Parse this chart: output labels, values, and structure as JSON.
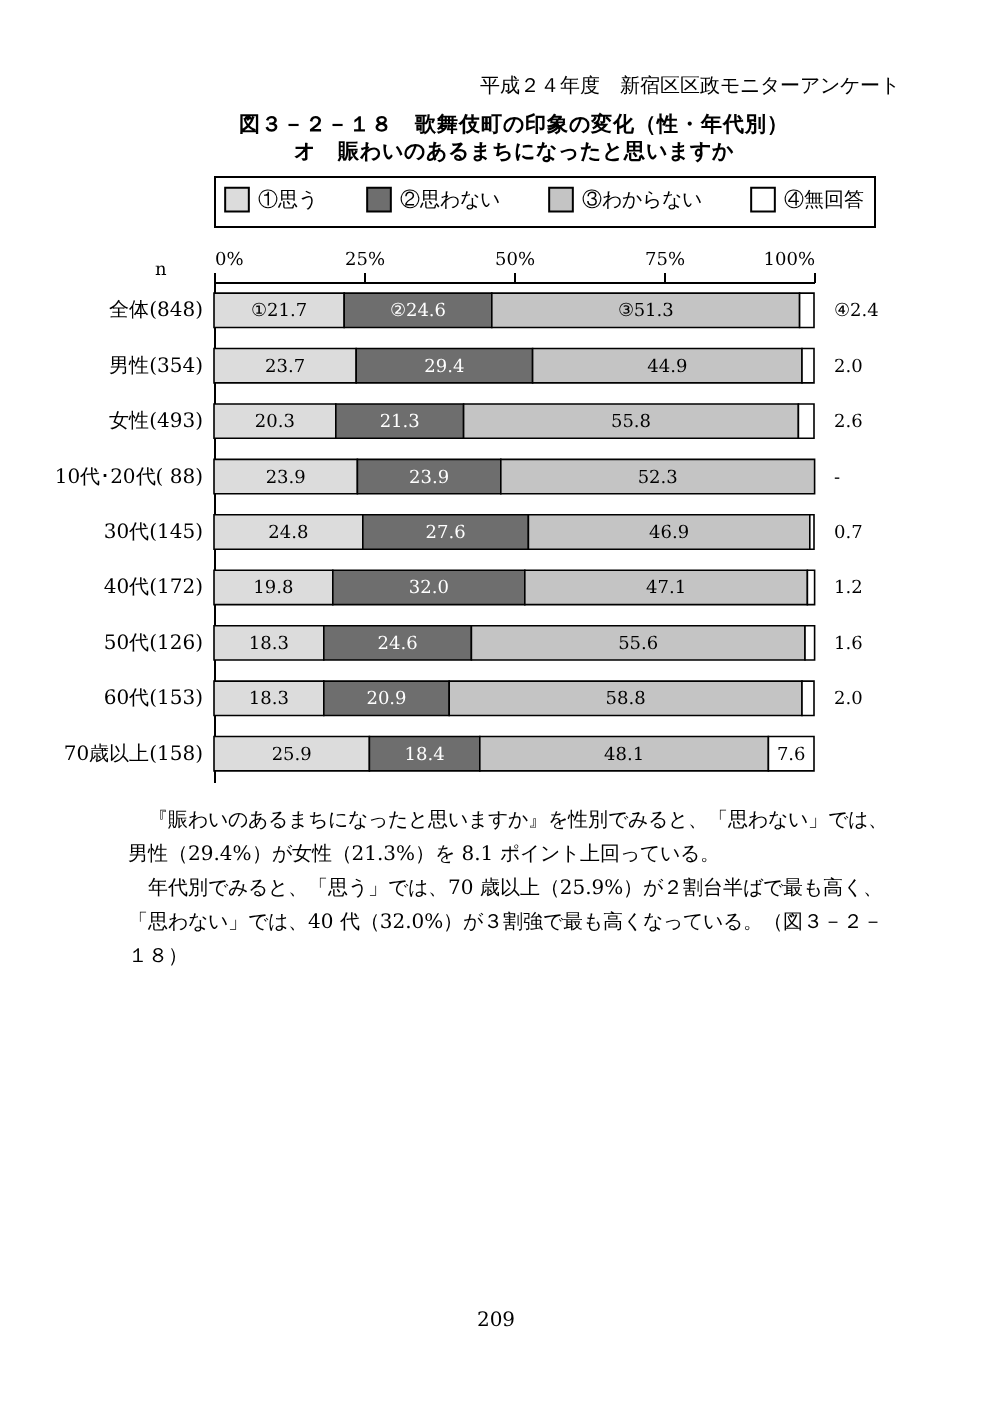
{
  "chart_data": {
    "type": "bar",
    "orientation": "horizontal",
    "stacked": true,
    "title": "図３－２－１８　歌舞伎町の印象の変化（性・年代別）",
    "subtitle": "オ　賑わいのあるまちになったと思いますか",
    "ylabel": "n",
    "categories": [
      "全体(848)",
      "男性(354)",
      "女性(493)",
      "10代･20代( 88)",
      "30代(145)",
      "40代(172)",
      "50代(126)",
      "60代(153)",
      "70歳以上(158)"
    ],
    "series": [
      {
        "name": "①思う",
        "color": "#dcdcdc",
        "values": [
          21.7,
          23.7,
          20.3,
          23.9,
          24.8,
          19.8,
          18.3,
          18.3,
          25.9
        ],
        "value_labels": [
          "①21.7",
          "23.7",
          "20.3",
          "23.9",
          "24.8",
          "19.8",
          "18.3",
          "18.3",
          "25.9"
        ]
      },
      {
        "name": "②思わない",
        "color": "#6e6e6e",
        "values": [
          24.6,
          29.4,
          21.3,
          23.9,
          27.6,
          32.0,
          24.6,
          20.9,
          18.4
        ],
        "value_labels": [
          "②24.6",
          "29.4",
          "21.3",
          "23.9",
          "27.6",
          "32.0",
          "24.6",
          "20.9",
          "18.4"
        ]
      },
      {
        "name": "③わからない",
        "color": "#c4c4c4",
        "values": [
          51.3,
          44.9,
          55.8,
          52.3,
          46.9,
          47.1,
          55.6,
          58.8,
          48.1
        ],
        "value_labels": [
          "③51.3",
          "44.9",
          "55.8",
          "52.3",
          "46.9",
          "47.1",
          "55.6",
          "58.8",
          "48.1"
        ]
      },
      {
        "name": "④無回答",
        "color": "#ffffff",
        "values": [
          2.4,
          2.0,
          2.6,
          0,
          0.7,
          1.2,
          1.6,
          2.0,
          7.6
        ],
        "value_labels": [
          "④2.4",
          "2.0",
          "2.6",
          "-",
          "0.7",
          "1.2",
          "1.6",
          "2.0",
          "7.6"
        ]
      }
    ],
    "xlim": [
      0,
      100
    ],
    "xticks": [
      {
        "value": 0,
        "label": "0%"
      },
      {
        "value": 25,
        "label": "25%"
      },
      {
        "value": 50,
        "label": "50%"
      },
      {
        "value": 75,
        "label": "75%"
      },
      {
        "value": 100,
        "label": "100%"
      }
    ],
    "legend": "top",
    "grid": false,
    "annotations": [
      "平成２４年度　新宿区区政モニターアンケート",
      "『賑わいのあるまちになったと思いますか』を性別でみると、「思わない」では、男性（29.4%）が女性（21.3%）を 8.1 ポイント上回っている。",
      "年代別でみると、「思う」では、70 歳以上（25.9%）が２割台半ばで最も高く、「思わない」では、40 代（32.0%）が３割強で最も高くなっている。（図３－２－１８）",
      "209"
    ]
  }
}
